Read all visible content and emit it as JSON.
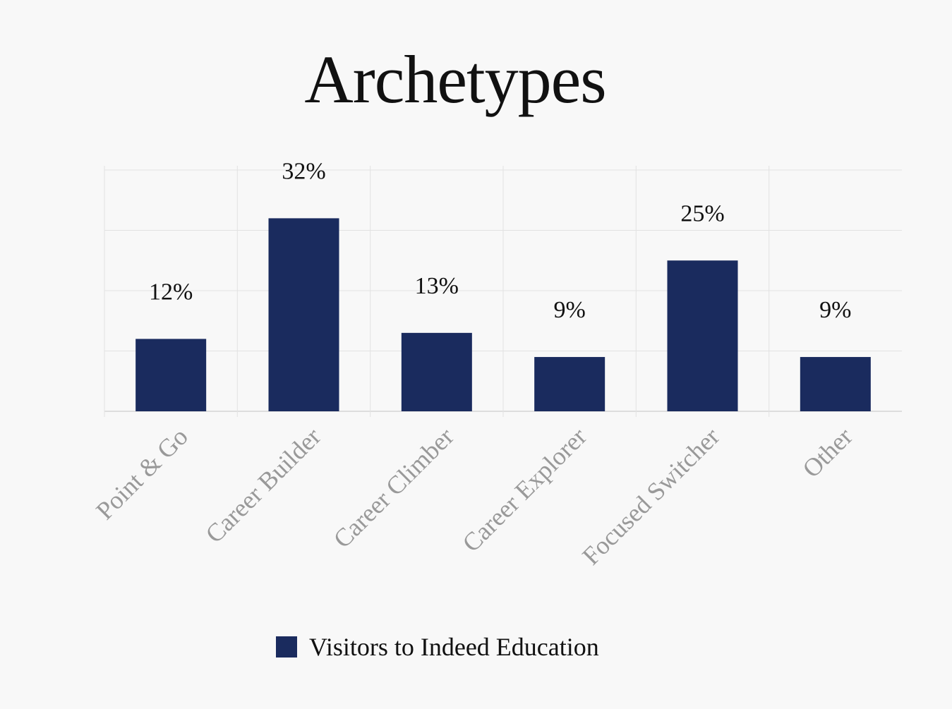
{
  "chart_data": {
    "type": "bar",
    "title": "Archetypes",
    "categories": [
      "Point & Go",
      "Career Builder",
      "Career Climber",
      "Career Explorer",
      "Focused Switcher",
      "Other"
    ],
    "series": [
      {
        "name": "Visitors to Indeed Education",
        "values": [
          12,
          32,
          13,
          9,
          25,
          9
        ],
        "labels": [
          "12%",
          "32%",
          "13%",
          "9%",
          "25%",
          "9%"
        ]
      }
    ],
    "ylim": [
      0,
      40
    ],
    "grid": true,
    "legend_position": "bottom",
    "colors": {
      "bar": "#1a2b5e",
      "grid": "#e2e2e2",
      "tick_label": "#999999",
      "value_label": "#111111"
    }
  }
}
